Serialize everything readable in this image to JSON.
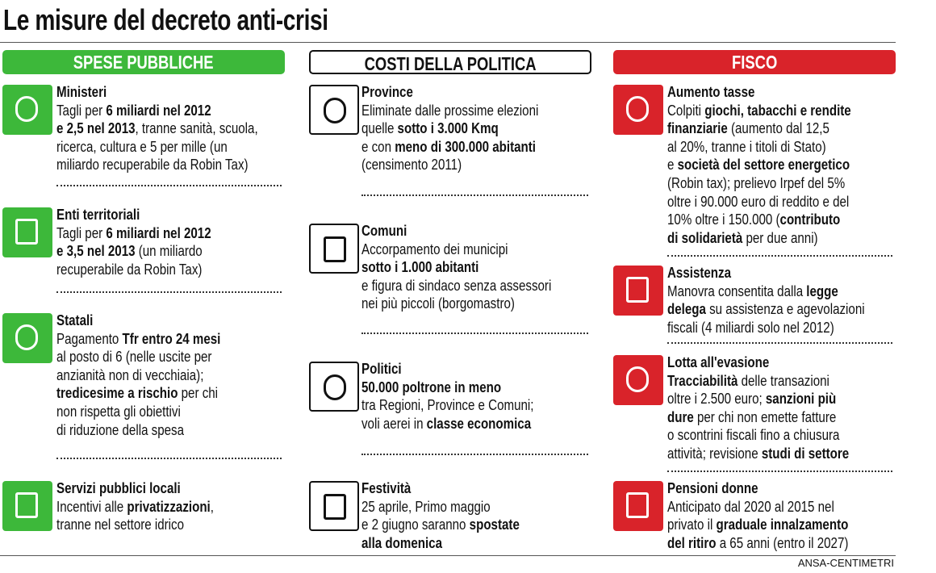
{
  "title": "Le misure del decreto anti-crisi",
  "columns": [
    {
      "header": "SPESE PUBBLICHE",
      "items": [
        {
          "title": "Ministeri",
          "lines": [
            [
              "Tagli per ",
              {
                "text": "6 miliardi nel 2012",
                "bold": true
              }
            ],
            [
              {
                "text": "e 2,5 nel 2013",
                "bold": true
              },
              ", tranne sanità, scuola,"
            ],
            [
              "ricerca, cultura e 5 per mille (un"
            ],
            [
              "miliardo recuperabile da Robin Tax)"
            ]
          ]
        },
        {
          "title": "Enti territoriali",
          "lines": [
            [
              "Tagli per ",
              {
                "text": "6 miliardi nel 2012",
                "bold": true
              }
            ],
            [
              {
                "text": "e 3,5 nel 2013",
                "bold": true
              },
              " (un miliardo"
            ],
            [
              "recuperabile da Robin Tax)"
            ]
          ]
        },
        {
          "title": "Statali",
          "lines": [
            [
              "Pagamento ",
              {
                "text": "Tfr entro 24 mesi",
                "bold": true
              }
            ],
            [
              "al posto di 6 (nelle uscite per"
            ],
            [
              "anzianità non di vecchiaia);"
            ],
            [
              {
                "text": "tredicesime a rischio",
                "bold": true
              },
              " per chi"
            ],
            [
              "non rispetta gli obiettivi"
            ],
            [
              "di riduzione della spesa"
            ]
          ]
        },
        {
          "title": "Servizi pubblici locali",
          "lines": [
            [
              "Incentivi alle ",
              {
                "text": "privatizzazioni",
                "bold": true
              },
              ","
            ],
            [
              "tranne nel settore idrico"
            ]
          ]
        }
      ]
    },
    {
      "header": "COSTI DELLA POLITICA",
      "items": [
        {
          "title": "Province",
          "lines": [
            [
              "Eliminate dalle prossime elezioni"
            ],
            [
              "quelle ",
              {
                "text": "sotto i 3.000 Kmq",
                "bold": true
              }
            ],
            [
              "e con ",
              {
                "text": "meno di 300.000 abitanti",
                "bold": true
              }
            ],
            [
              "(censimento 2011)"
            ]
          ]
        },
        {
          "title": "Comuni",
          "lines": [
            [
              "Accorpamento dei municipi"
            ],
            [
              {
                "text": "sotto i 1.000 abitanti",
                "bold": true
              }
            ],
            [
              "e figura di sindaco senza assessori"
            ],
            [
              "nei più piccoli (borgomastro)"
            ]
          ]
        },
        {
          "title": "Politici",
          "lines": [
            [
              {
                "text": "50.000 poltrone in meno",
                "bold": true
              }
            ],
            [
              "tra Regioni, Province e Comuni;"
            ],
            [
              "voli aerei in ",
              {
                "text": "classe economica",
                "bold": true
              }
            ]
          ]
        },
        {
          "title": "Festività",
          "lines": [
            [
              "25 aprile, Primo maggio"
            ],
            [
              "e 2 giugno saranno ",
              {
                "text": "spostate",
                "bold": true
              }
            ],
            [
              {
                "text": "alla domenica",
                "bold": true
              }
            ]
          ]
        }
      ]
    },
    {
      "header": "FISCO",
      "items": [
        {
          "title": "Aumento tasse",
          "lines": [
            [
              "Colpiti ",
              {
                "text": "giochi, tabacchi e rendite",
                "bold": true
              }
            ],
            [
              {
                "text": "finanziarie",
                "bold": true
              },
              " (aumento dal 12,5"
            ],
            [
              "al 20%, tranne i titoli di Stato)"
            ],
            [
              "e ",
              {
                "text": "società del settore energetico",
                "bold": true
              }
            ],
            [
              "(Robin tax); prelievo Irpef del 5%"
            ],
            [
              "oltre i 90.000 euro di reddito e del"
            ],
            [
              "10% oltre i 150.000 (",
              {
                "text": "contributo",
                "bold": true
              }
            ],
            [
              {
                "text": "di solidarietà",
                "bold": true
              },
              " per due anni)"
            ]
          ]
        },
        {
          "title": "Assistenza",
          "lines": [
            [
              "Manovra consentita dalla ",
              {
                "text": "legge",
                "bold": true
              }
            ],
            [
              {
                "text": "delega",
                "bold": true
              },
              " su assistenza e agevolazioni"
            ],
            [
              "fiscali (4 miliardi solo nel 2012)"
            ]
          ]
        },
        {
          "title": "Lotta all'evasione",
          "lines": [
            [
              {
                "text": "Tracciabilità",
                "bold": true
              },
              " delle transazioni"
            ],
            [
              "oltre i 2.500 euro; ",
              {
                "text": "sanzioni più",
                "bold": true
              }
            ],
            [
              {
                "text": "dure",
                "bold": true
              },
              " per chi non emette fatture"
            ],
            [
              "o scontrini fiscali fino a chiusura"
            ],
            [
              "attività; revisione ",
              {
                "text": "studi di settore",
                "bold": true
              }
            ]
          ]
        },
        {
          "title": "Pensioni donne",
          "lines": [
            [
              "Anticipato dal 2020 al 2015 nel"
            ],
            [
              "privato il ",
              {
                "text": "graduale innalzamento",
                "bold": true
              }
            ],
            [
              {
                "text": "del ritiro",
                "bold": true
              },
              " a 65 anni (entro il 2027)"
            ]
          ]
        }
      ]
    }
  ],
  "source": "ANSA-CENTIMETRI"
}
